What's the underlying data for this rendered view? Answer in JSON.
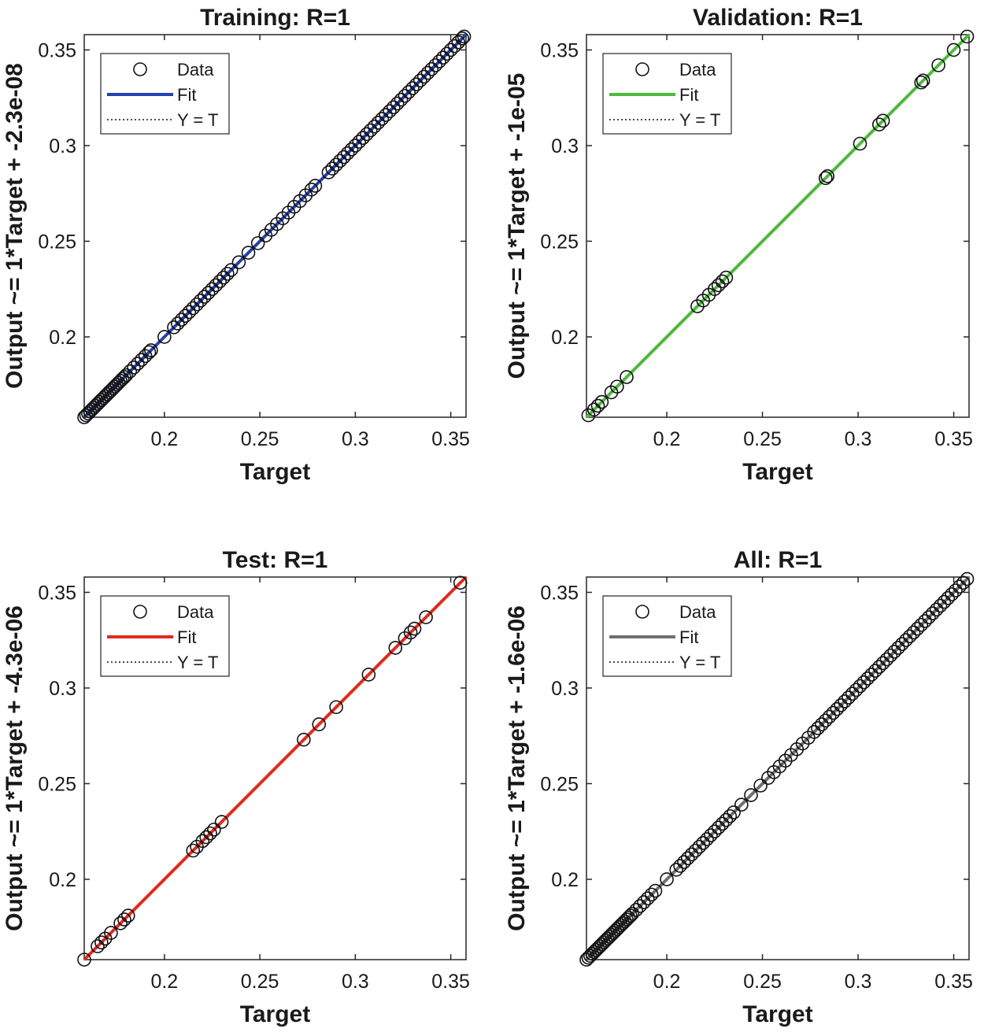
{
  "chart_data": [
    {
      "type": "scatter",
      "title": "Training: R=1",
      "xlabel": "Target",
      "ylabel": "Output ~= 1*Target + -2.3e-08",
      "xlim": [
        0.158,
        0.358
      ],
      "ylim": [
        0.158,
        0.358
      ],
      "xticks": [
        0.2,
        0.25,
        0.3,
        0.35
      ],
      "yticks": [
        0.2,
        0.25,
        0.3,
        0.35
      ],
      "xtick_labels": [
        "0.2",
        "0.25",
        "0.3",
        "0.35"
      ],
      "ytick_labels": [
        "0.2",
        "0.25",
        "0.3",
        "0.35"
      ],
      "fit_color": "#2540b0",
      "legend": {
        "position": "top-left",
        "entries": [
          "Data",
          "Fit",
          "Y = T"
        ]
      },
      "fit_line": [
        [
          0.158,
          0.158
        ],
        [
          0.358,
          0.358
        ]
      ],
      "points": [
        0.158,
        0.159,
        0.16,
        0.161,
        0.162,
        0.163,
        0.164,
        0.165,
        0.166,
        0.167,
        0.168,
        0.169,
        0.17,
        0.171,
        0.172,
        0.173,
        0.174,
        0.175,
        0.176,
        0.177,
        0.178,
        0.179,
        0.18,
        0.182,
        0.184,
        0.186,
        0.188,
        0.19,
        0.192,
        0.193,
        0.2,
        0.205,
        0.207,
        0.209,
        0.211,
        0.213,
        0.215,
        0.217,
        0.219,
        0.221,
        0.223,
        0.225,
        0.227,
        0.229,
        0.231,
        0.233,
        0.235,
        0.239,
        0.244,
        0.249,
        0.253,
        0.256,
        0.259,
        0.262,
        0.265,
        0.268,
        0.271,
        0.274,
        0.277,
        0.279,
        0.286,
        0.288,
        0.29,
        0.292,
        0.294,
        0.296,
        0.298,
        0.3,
        0.302,
        0.304,
        0.306,
        0.308,
        0.31,
        0.312,
        0.314,
        0.316,
        0.318,
        0.32,
        0.322,
        0.324,
        0.326,
        0.328,
        0.33,
        0.332,
        0.334,
        0.336,
        0.338,
        0.34,
        0.342,
        0.344,
        0.346,
        0.348,
        0.35,
        0.352,
        0.354,
        0.356,
        0.357
      ]
    },
    {
      "type": "scatter",
      "title": "Validation: R=1",
      "xlabel": "Target",
      "ylabel": "Output ~= 1*Target + -1e-05",
      "xlim": [
        0.158,
        0.358
      ],
      "ylim": [
        0.158,
        0.358
      ],
      "xticks": [
        0.2,
        0.25,
        0.3,
        0.35
      ],
      "yticks": [
        0.2,
        0.25,
        0.3,
        0.35
      ],
      "xtick_labels": [
        "0.2",
        "0.25",
        "0.3",
        "0.35"
      ],
      "ytick_labels": [
        "0.2",
        "0.25",
        "0.3",
        "0.35"
      ],
      "fit_color": "#4cbb3a",
      "legend": {
        "position": "top-left",
        "entries": [
          "Data",
          "Fit",
          "Y = T"
        ]
      },
      "fit_line": [
        [
          0.158,
          0.158
        ],
        [
          0.358,
          0.358
        ]
      ],
      "points": [
        0.159,
        0.162,
        0.164,
        0.166,
        0.171,
        0.174,
        0.179,
        0.216,
        0.219,
        0.222,
        0.225,
        0.227,
        0.229,
        0.231,
        0.283,
        0.284,
        0.301,
        0.311,
        0.313,
        0.333,
        0.334,
        0.342,
        0.35,
        0.357
      ]
    },
    {
      "type": "scatter",
      "title": "Test: R=1",
      "xlabel": "Target",
      "ylabel": "Output ~= 1*Target + -4.3e-06",
      "xlim": [
        0.158,
        0.358
      ],
      "ylim": [
        0.158,
        0.358
      ],
      "xticks": [
        0.2,
        0.25,
        0.3,
        0.35
      ],
      "yticks": [
        0.2,
        0.25,
        0.3,
        0.35
      ],
      "xtick_labels": [
        "0.2",
        "0.25",
        "0.3",
        "0.35"
      ],
      "ytick_labels": [
        "0.2",
        "0.25",
        "0.3",
        "0.35"
      ],
      "fit_color": "#e02a1e",
      "legend": {
        "position": "top-left",
        "entries": [
          "Data",
          "Fit",
          "Y = T"
        ]
      },
      "fit_line": [
        [
          0.158,
          0.158
        ],
        [
          0.358,
          0.358
        ]
      ],
      "points": [
        0.158,
        0.165,
        0.167,
        0.169,
        0.172,
        0.177,
        0.179,
        0.181,
        0.215,
        0.217,
        0.22,
        0.222,
        0.224,
        0.226,
        0.23,
        0.273,
        0.281,
        0.29,
        0.307,
        0.321,
        0.326,
        0.329,
        0.331,
        0.337,
        0.355
      ]
    },
    {
      "type": "scatter",
      "title": "All: R=1",
      "xlabel": "Target",
      "ylabel": "Output ~= 1*Target + -1.6e-06",
      "xlim": [
        0.158,
        0.358
      ],
      "ylim": [
        0.158,
        0.358
      ],
      "xticks": [
        0.2,
        0.25,
        0.3,
        0.35
      ],
      "yticks": [
        0.2,
        0.25,
        0.3,
        0.35
      ],
      "xtick_labels": [
        "0.2",
        "0.25",
        "0.3",
        "0.35"
      ],
      "ytick_labels": [
        "0.2",
        "0.25",
        "0.3",
        "0.35"
      ],
      "fit_color": "#707070",
      "legend": {
        "position": "top-left",
        "entries": [
          "Data",
          "Fit",
          "Y = T"
        ]
      },
      "fit_line": [
        [
          0.158,
          0.158
        ],
        [
          0.358,
          0.358
        ]
      ],
      "points": [
        0.158,
        0.159,
        0.16,
        0.161,
        0.162,
        0.163,
        0.164,
        0.165,
        0.166,
        0.167,
        0.168,
        0.169,
        0.17,
        0.171,
        0.172,
        0.173,
        0.174,
        0.175,
        0.176,
        0.177,
        0.178,
        0.179,
        0.18,
        0.181,
        0.182,
        0.184,
        0.186,
        0.188,
        0.19,
        0.192,
        0.194,
        0.2,
        0.205,
        0.207,
        0.209,
        0.211,
        0.213,
        0.215,
        0.217,
        0.219,
        0.221,
        0.223,
        0.225,
        0.227,
        0.229,
        0.231,
        0.233,
        0.235,
        0.239,
        0.244,
        0.249,
        0.253,
        0.256,
        0.259,
        0.262,
        0.265,
        0.268,
        0.271,
        0.274,
        0.277,
        0.279,
        0.281,
        0.283,
        0.285,
        0.287,
        0.289,
        0.291,
        0.293,
        0.295,
        0.297,
        0.299,
        0.301,
        0.303,
        0.305,
        0.307,
        0.309,
        0.311,
        0.313,
        0.315,
        0.317,
        0.319,
        0.321,
        0.323,
        0.325,
        0.327,
        0.329,
        0.331,
        0.333,
        0.335,
        0.337,
        0.339,
        0.341,
        0.343,
        0.345,
        0.347,
        0.349,
        0.351,
        0.353,
        0.355,
        0.357
      ]
    }
  ]
}
